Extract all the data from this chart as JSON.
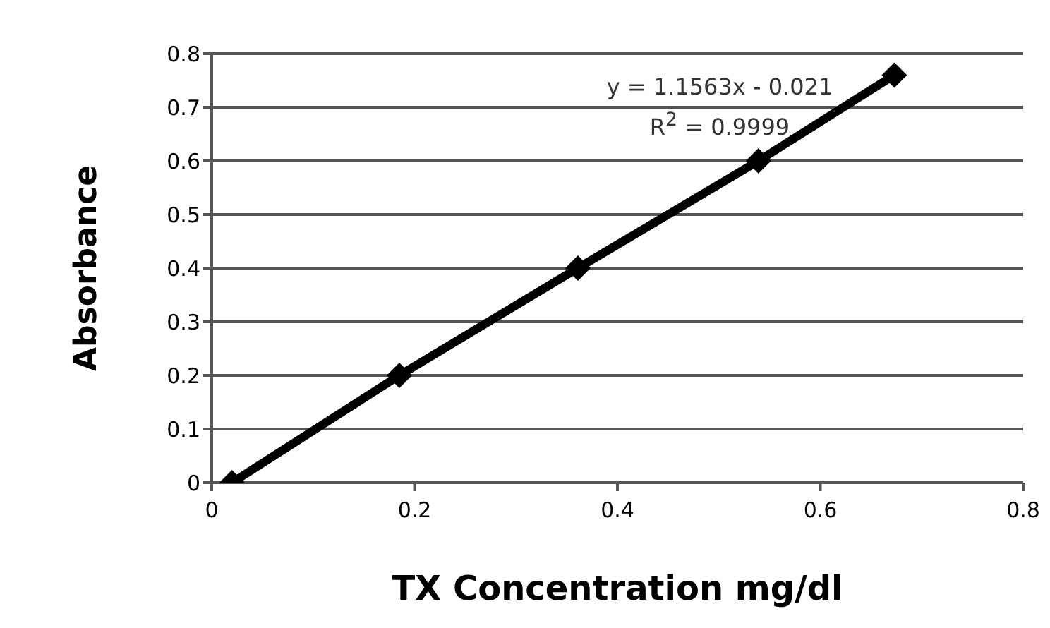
{
  "chart_data": {
    "type": "line",
    "xlabel": "TX Concentration mg/dl",
    "ylabel": "Absorbance",
    "x": [
      0.02,
      0.185,
      0.361,
      0.539,
      0.673
    ],
    "series": [
      {
        "color": "#000000",
        "values": [
          0,
          0.2,
          0.4,
          0.6,
          0.76
        ]
      }
    ],
    "xlim": [
      0,
      0.8
    ],
    "xticks": [
      0,
      0.2,
      0.4,
      0.6,
      0.8
    ],
    "ylim": [
      0,
      0.8
    ],
    "yticks": [
      0,
      0.1,
      0.2,
      0.3,
      0.4,
      0.5,
      0.6,
      0.7,
      0.8
    ],
    "grid": "y",
    "marker": "diamond",
    "line_style": "solid",
    "annotations": [
      "y = 1.1563x - 0.021",
      "R$^{2}$ = 0.9999"
    ]
  }
}
